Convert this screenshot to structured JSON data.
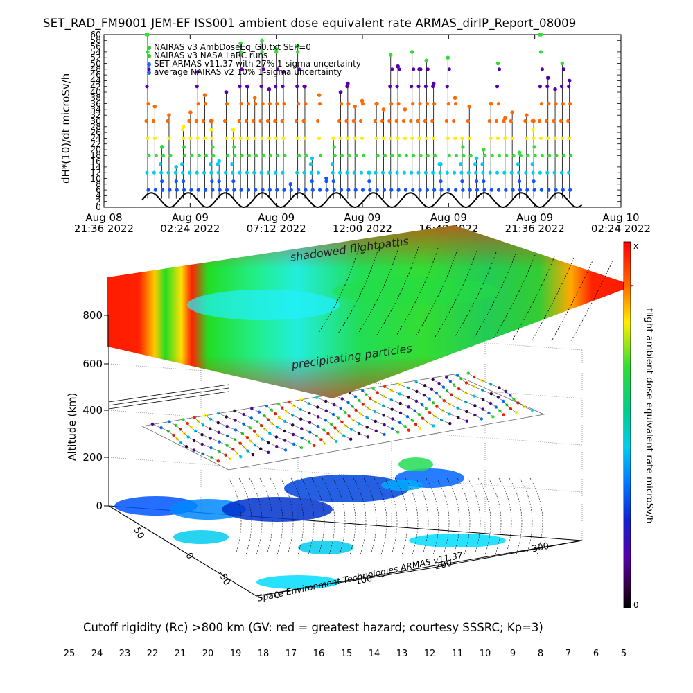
{
  "header": {
    "title": "SET_RAD_FM9001  JEM-EF ISS001 ambient dose equivalent rate ARMAS_dirIP_Report_08009"
  },
  "top_chart": {
    "ylabel": "dH*(10)/dt microSv/h",
    "yticks": [
      "0",
      "2",
      "4",
      "6",
      "8",
      "10",
      "12",
      "14",
      "16",
      "18",
      "20",
      "22",
      "24",
      "26",
      "28",
      "30",
      "32",
      "34",
      "36",
      "38",
      "40",
      "42",
      "44",
      "46",
      "48",
      "50",
      "52",
      "54",
      "56",
      "58",
      "60"
    ],
    "xticks": [
      {
        "line1": "Aug 08",
        "line2": "21:36 2022"
      },
      {
        "line1": "Aug 09",
        "line2": "02:24 2022"
      },
      {
        "line1": "Aug 09",
        "line2": "07:12 2022"
      },
      {
        "line1": "Aug 09",
        "line2": "12:00 2022"
      },
      {
        "line1": "Aug 09",
        "line2": "16:48 2022"
      },
      {
        "line1": "Aug 09",
        "line2": "21:36 2022"
      },
      {
        "line1": "Aug 10",
        "line2": "02:24 2022"
      }
    ],
    "legend": [
      {
        "text": "NAIRAS v3 AmbDoseEq_G0.txt SEP=0",
        "color": "#33cc33"
      },
      {
        "text": "NAIRAS v3 NASA LaRC runs",
        "color": "#33cc33"
      },
      {
        "text": "SET ARMAS v11.37 with 27% 1-sigma uncertainty",
        "color": "#2266ff"
      },
      {
        "text": "average NAIRAS v2 10% 1-sigma uncertainty",
        "color": "#2266ff"
      }
    ]
  },
  "three_d": {
    "annotations": {
      "shadowed": "shadowed flightpaths",
      "precip": "precipitating particles"
    },
    "ylabel": "Altitude (km)",
    "alt_ticks": [
      "0",
      "200",
      "400",
      "600",
      "800"
    ],
    "lat_ticks": [
      "50",
      "0",
      "-50"
    ],
    "lon_ticks": [
      "0",
      "100",
      "200",
      "300"
    ],
    "credit": "Space Environment Technologies ARMAS v11.37"
  },
  "colorbar_right": {
    "label": "flight ambient dose equivalent rate microSv/h",
    "top": "x",
    "bottom": "0"
  },
  "bottom_colorbar": {
    "title": "Cutoff rigidity (Rc) >800 km (GV: red = greatest hazard; courtesy SSSRC; Kp=3)",
    "ticks": [
      "25",
      "24",
      "23",
      "22",
      "21",
      "20",
      "19",
      "18",
      "17",
      "16",
      "15",
      "14",
      "13",
      "12",
      "11",
      "10",
      "9",
      "8",
      "7",
      "6",
      "5"
    ]
  },
  "chart_data": [
    {
      "type": "scatter",
      "title": "SET_RAD_FM9001  JEM-EF ISS001 ambient dose equivalent rate ARMAS_dirIP_Report_08009",
      "ylabel": "dH*(10)/dt microSv/h",
      "ylim": [
        0,
        60
      ],
      "xrange": [
        "Aug 08 21:36 2022",
        "Aug 10 02:24 2022"
      ],
      "baseline_oscillation_range": [
        0,
        6
      ],
      "spikes": [
        {
          "x": "Aug 09 00:30",
          "y": 60
        },
        {
          "x": "Aug 09 01:40",
          "y": 42
        },
        {
          "x": "Aug 09 03:10",
          "y": 24
        },
        {
          "x": "Aug 09 04:10",
          "y": 42
        },
        {
          "x": "Aug 09 05:10",
          "y": 20
        },
        {
          "x": "Aug 09 06:30",
          "y": 30
        },
        {
          "x": "Aug 09 07:40",
          "y": 42
        },
        {
          "x": "Aug 09 08:50",
          "y": 52
        },
        {
          "x": "Aug 09 10:00",
          "y": 40
        },
        {
          "x": "Aug 09 11:10",
          "y": 38
        },
        {
          "x": "Aug 09 12:20",
          "y": 20
        },
        {
          "x": "Aug 09 13:30",
          "y": 40
        },
        {
          "x": "Aug 09 14:40",
          "y": 34
        },
        {
          "x": "Aug 09 15:50",
          "y": 60
        },
        {
          "x": "Aug 09 16:30",
          "y": 52
        },
        {
          "x": "Aug 09 17:40",
          "y": 44
        },
        {
          "x": "Aug 09 18:50",
          "y": 60
        },
        {
          "x": "Aug 09 20:00",
          "y": 50
        },
        {
          "x": "Aug 09 21:10",
          "y": 60
        },
        {
          "x": "Aug 09 22:20",
          "y": 48
        },
        {
          "x": "Aug 09 23:20",
          "y": 16
        }
      ]
    },
    {
      "type": "heatmap",
      "title": "Cutoff rigidity (Rc) >800 km (GV: red = greatest hazard; courtesy SSSRC; Kp=3)",
      "colorbar_range": [
        25,
        5
      ],
      "ylabel": "Altitude (km)",
      "zlim": [
        0,
        800
      ]
    }
  ]
}
